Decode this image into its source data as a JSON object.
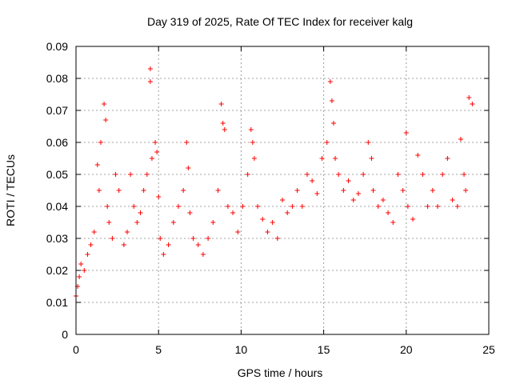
{
  "chart_data": {
    "type": "scatter",
    "title": "Day 319 of 2025, Rate Of TEC Index for receiver kalg",
    "xlabel": "GPS time / hours",
    "ylabel": "ROTI / TECUs",
    "xlim": [
      0,
      25
    ],
    "ylim": [
      0,
      0.09
    ],
    "xticks": [
      0,
      5,
      10,
      15,
      20,
      25
    ],
    "yticks": [
      0,
      0.01,
      0.02,
      0.03,
      0.04,
      0.05,
      0.06,
      0.07,
      0.08,
      0.09
    ],
    "xtick_labels": [
      "0",
      "5",
      "10",
      "15",
      "20",
      "25"
    ],
    "ytick_labels": [
      "0",
      "0.01",
      "0.02",
      "0.03",
      "0.04",
      "0.05",
      "0.06",
      "0.07",
      "0.08",
      "0.09"
    ],
    "grid": true,
    "marker": "+",
    "color": "#ff0000",
    "series": [
      {
        "x": [
          0.0,
          0.1,
          0.2,
          0.3,
          0.5,
          0.7,
          0.9,
          1.1,
          1.3,
          1.4,
          1.5,
          1.7,
          1.8,
          1.9,
          2.0,
          2.2,
          2.4,
          2.6,
          2.9,
          3.1,
          3.3,
          3.5,
          3.7,
          3.9,
          4.1,
          4.3,
          4.5,
          4.5,
          4.6,
          4.8,
          4.9,
          5.0,
          5.1,
          5.3,
          5.6,
          5.9,
          6.2,
          6.5,
          6.7,
          6.8,
          6.9,
          7.1,
          7.4,
          7.7,
          8.0,
          8.3,
          8.6,
          8.8,
          8.9,
          9.0,
          9.2,
          9.5,
          9.8,
          10.1,
          10.4,
          10.6,
          10.7,
          10.8,
          11.0,
          11.3,
          11.6,
          11.9,
          12.2,
          12.5,
          12.8,
          13.1,
          13.4,
          13.7,
          14.0,
          14.3,
          14.6,
          14.9,
          15.2,
          15.4,
          15.5,
          15.6,
          15.7,
          15.9,
          16.2,
          16.5,
          16.8,
          17.1,
          17.4,
          17.7,
          17.9,
          18.0,
          18.3,
          18.6,
          18.9,
          19.2,
          19.5,
          19.8,
          20.0,
          20.1,
          20.4,
          20.7,
          21.0,
          21.3,
          21.6,
          21.9,
          22.2,
          22.5,
          22.8,
          23.1,
          23.3,
          23.5,
          23.6,
          23.8,
          24.0
        ],
        "y": [
          0.012,
          0.015,
          0.018,
          0.022,
          0.02,
          0.025,
          0.028,
          0.032,
          0.053,
          0.045,
          0.06,
          0.072,
          0.067,
          0.04,
          0.035,
          0.03,
          0.05,
          0.045,
          0.028,
          0.032,
          0.05,
          0.04,
          0.035,
          0.038,
          0.045,
          0.05,
          0.083,
          0.079,
          0.055,
          0.06,
          0.057,
          0.043,
          0.03,
          0.025,
          0.028,
          0.035,
          0.04,
          0.045,
          0.06,
          0.052,
          0.038,
          0.03,
          0.028,
          0.025,
          0.03,
          0.035,
          0.045,
          0.072,
          0.066,
          0.064,
          0.04,
          0.038,
          0.032,
          0.04,
          0.05,
          0.064,
          0.06,
          0.055,
          0.04,
          0.036,
          0.032,
          0.035,
          0.03,
          0.042,
          0.038,
          0.04,
          0.045,
          0.04,
          0.05,
          0.048,
          0.044,
          0.055,
          0.06,
          0.079,
          0.073,
          0.066,
          0.055,
          0.05,
          0.045,
          0.048,
          0.042,
          0.044,
          0.05,
          0.06,
          0.055,
          0.045,
          0.04,
          0.042,
          0.038,
          0.035,
          0.05,
          0.045,
          0.063,
          0.04,
          0.036,
          0.056,
          0.05,
          0.04,
          0.045,
          0.04,
          0.05,
          0.055,
          0.042,
          0.04,
          0.061,
          0.05,
          0.045,
          0.074,
          0.072
        ]
      }
    ]
  }
}
